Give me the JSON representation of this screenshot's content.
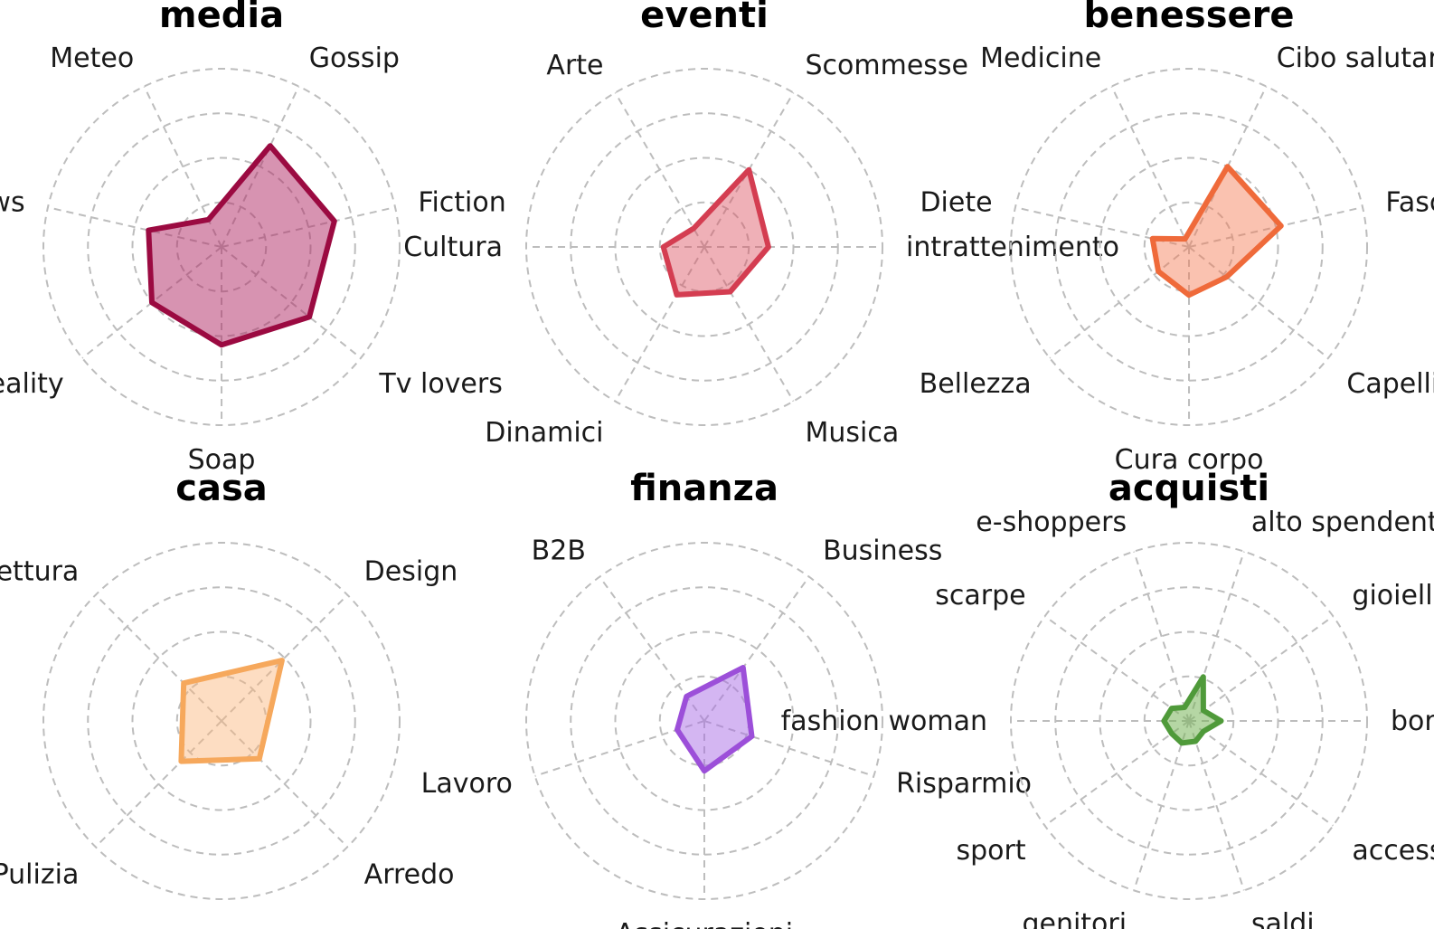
{
  "chart_data": [
    {
      "type": "radar",
      "title": "media",
      "categories": [
        "Gossip",
        "Fiction",
        "Tv lovers",
        "Soap",
        "Reality",
        "News",
        "Meteo"
      ],
      "values": [
        0.63,
        0.65,
        0.63,
        0.55,
        0.5,
        0.42,
        0.17
      ],
      "rmax": 1.0,
      "rings": 4,
      "start_angle_deg": 25.7,
      "color": "#9b0a41",
      "fill": "rgba(176, 40, 100, 0.5)"
    },
    {
      "type": "radar",
      "title": "eventi",
      "categories": [
        "Scommesse",
        "intrattenimento",
        "Musica",
        "Dinamici",
        "Cultura",
        "Arte"
      ],
      "values": [
        0.5,
        0.36,
        0.29,
        0.31,
        0.23,
        0.12
      ],
      "rmax": 1.0,
      "rings": 4,
      "start_angle_deg": 30,
      "color": "#d43d51",
      "fill": "rgba(220, 80, 95, 0.45)"
    },
    {
      "type": "radar",
      "title": "benessere",
      "categories": [
        "Cibo salutare",
        "Fascino",
        "Capelli",
        "Cura corpo",
        "Bellezza",
        "Diete",
        "Medicine"
      ],
      "values": [
        0.5,
        0.53,
        0.27,
        0.27,
        0.22,
        0.21,
        0.05
      ],
      "rmax": 1.0,
      "rings": 4,
      "start_angle_deg": 25.7,
      "color": "#ef6a3a",
      "fill": "rgba(244, 120, 80, 0.45)"
    },
    {
      "type": "radar",
      "title": "casa",
      "categories": [
        "Design",
        "Arredo",
        "Pulizia",
        "Architettura"
      ],
      "values": [
        0.48,
        0.3,
        0.32,
        0.3
      ],
      "rmax": 1.0,
      "rings": 4,
      "start_angle_deg": 45,
      "color": "#f6a85c",
      "fill": "rgba(250, 180, 120, 0.45)"
    },
    {
      "type": "radar",
      "title": "finanza",
      "categories": [
        "Business",
        "Risparmio",
        "Assicurazioni",
        "Lavoro",
        "B2B"
      ],
      "values": [
        0.37,
        0.28,
        0.28,
        0.16,
        0.17
      ],
      "rmax": 1.0,
      "rings": 4,
      "start_angle_deg": 36,
      "color": "#9c4fd9",
      "fill": "rgba(170, 110, 230, 0.5)"
    },
    {
      "type": "radar",
      "title": "acquisti",
      "categories": [
        "alto spendenti",
        "gioielli",
        "borse",
        "accessori",
        "saldi",
        "genitori",
        "sport",
        "fashion woman",
        "scarpe",
        "e-shoppers"
      ],
      "values": [
        0.26,
        0.1,
        0.18,
        0.1,
        0.12,
        0.13,
        0.12,
        0.14,
        0.12,
        0.08
      ],
      "rmax": 1.0,
      "rings": 4,
      "start_angle_deg": 18,
      "color": "#4f9a3a",
      "fill": "rgba(120, 180, 90, 0.55)"
    }
  ]
}
